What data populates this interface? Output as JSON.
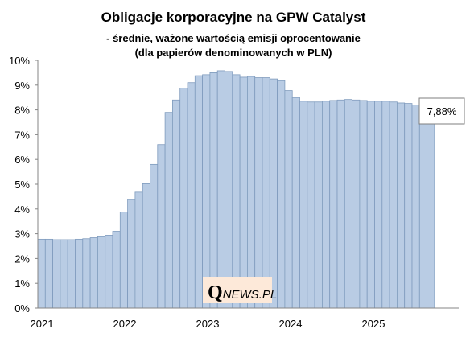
{
  "chart_data": {
    "type": "bar",
    "title": "Obligacje korporacyjne na GPW Catalyst",
    "subtitle": [
      "- średnie, ważone wartością emisji oprocentowanie",
      "(dla papierów denominowanych w PLN)"
    ],
    "xlabel": "",
    "ylabel": "",
    "ylim": [
      0,
      10
    ],
    "y_ticks": [
      "0%",
      "1%",
      "2%",
      "3%",
      "4%",
      "5%",
      "6%",
      "7%",
      "8%",
      "9%",
      "10%"
    ],
    "x_ticks": [
      "2021",
      "2022",
      "2023",
      "2024",
      "2025"
    ],
    "grid": false,
    "legend": "none",
    "bar_color": "#b9cce4",
    "bar_edge_color": "#7f9bbd",
    "values": [
      2.78,
      2.78,
      2.76,
      2.76,
      2.76,
      2.78,
      2.8,
      2.84,
      2.88,
      2.94,
      3.1,
      3.88,
      4.38,
      4.68,
      5.02,
      5.8,
      6.6,
      7.9,
      8.4,
      8.88,
      9.1,
      9.38,
      9.42,
      9.5,
      9.58,
      9.55,
      9.42,
      9.32,
      9.35,
      9.3,
      9.3,
      9.25,
      9.18,
      8.78,
      8.5,
      8.35,
      8.32,
      8.32,
      8.35,
      8.38,
      8.4,
      8.42,
      8.4,
      8.38,
      8.35,
      8.35,
      8.35,
      8.32,
      8.28,
      8.26,
      8.2,
      8.02,
      7.88
    ],
    "annotation": "7,88%"
  },
  "logo": {
    "q": "Q",
    "rest": "NEWS.PL"
  }
}
